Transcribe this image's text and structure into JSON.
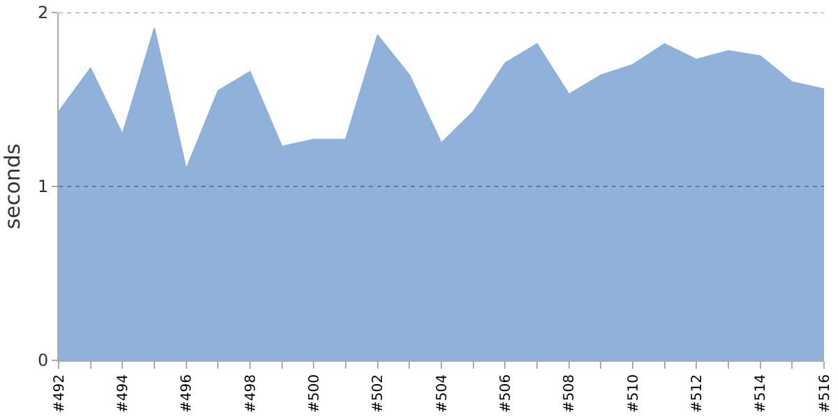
{
  "chart_data": {
    "type": "area",
    "ylabel": "seconds",
    "categories": [
      "#492",
      null,
      "#494",
      null,
      "#496",
      null,
      "#498",
      null,
      "#500",
      null,
      "#502",
      null,
      "#504",
      null,
      "#506",
      null,
      "#508",
      null,
      "#510",
      null,
      "#512",
      null,
      "#514",
      null,
      "#516"
    ],
    "series": [
      {
        "color": "#8fb1da",
        "values": [
          1.43,
          1.68,
          1.3,
          1.91,
          1.1,
          1.55,
          1.66,
          1.23,
          1.27,
          1.27,
          1.87,
          1.64,
          1.25,
          1.43,
          1.71,
          1.82,
          1.53,
          1.64,
          1.7,
          1.82,
          1.73,
          1.78,
          1.75,
          1.6,
          1.56
        ]
      }
    ],
    "ylim": [
      0,
      2
    ],
    "yticks": [
      0,
      1,
      2
    ],
    "grid": "y"
  }
}
